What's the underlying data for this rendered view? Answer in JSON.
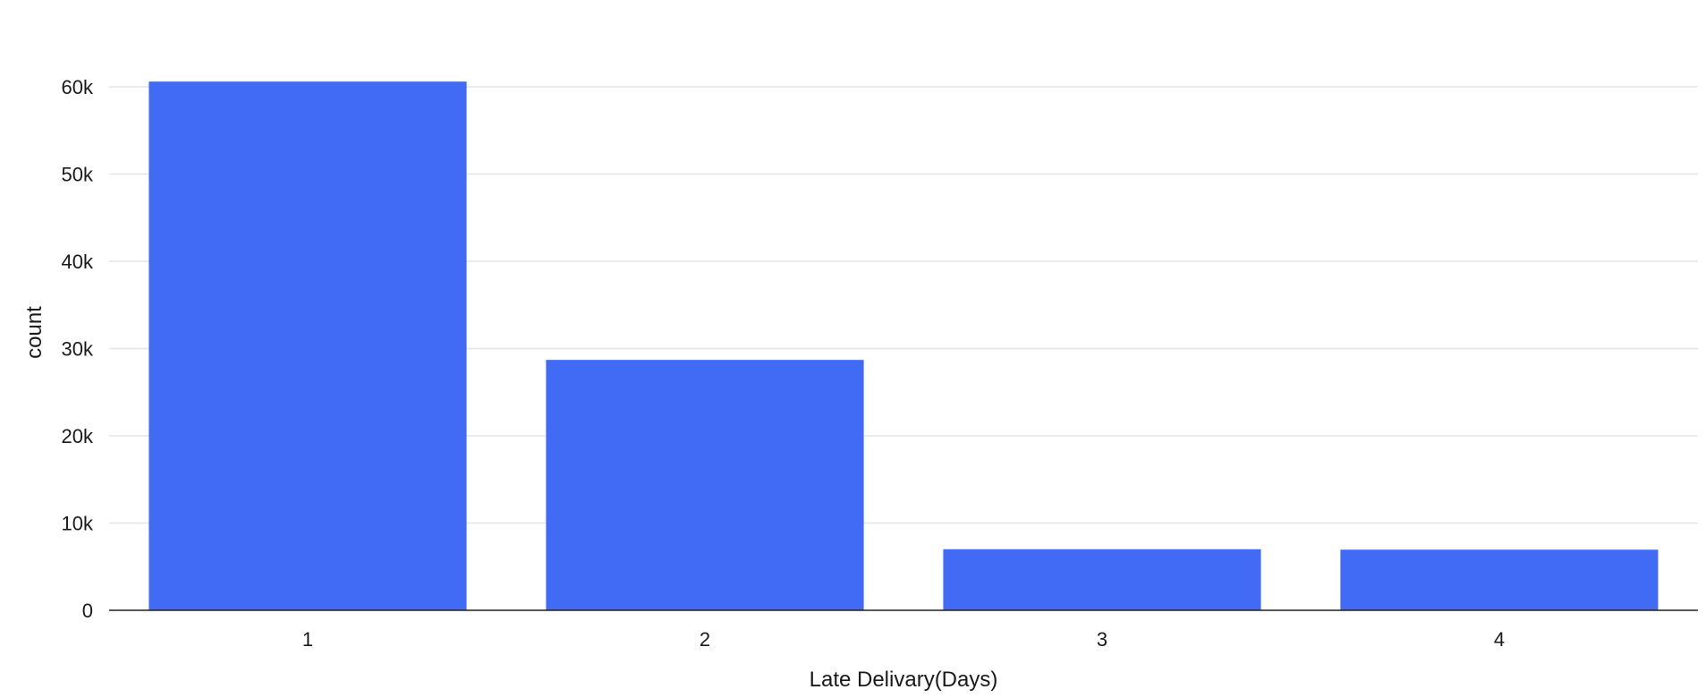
{
  "chart_data": {
    "type": "bar",
    "categories": [
      "1",
      "2",
      "3",
      "4"
    ],
    "values": [
      60600,
      28700,
      7000,
      6950
    ],
    "title": "",
    "xlabel": "Late Delivary(Days)",
    "ylabel": "count",
    "ylim": [
      0,
      60000
    ],
    "yticks": [
      0,
      10000,
      20000,
      30000,
      40000,
      50000,
      60000
    ],
    "ytick_labels": [
      "0",
      "10k",
      "20k",
      "30k",
      "40k",
      "50k",
      "60k"
    ],
    "grid": true,
    "legend": "none",
    "bar_color": "#426bf5"
  }
}
